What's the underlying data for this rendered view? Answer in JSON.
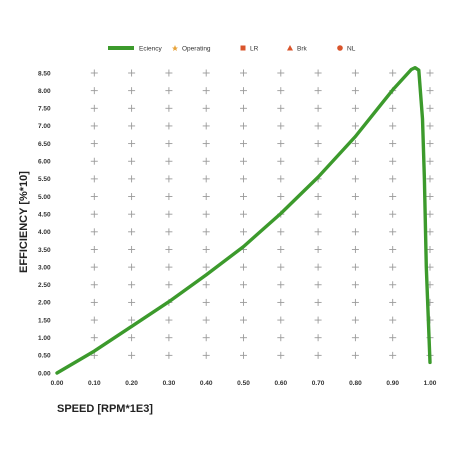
{
  "chart_data": {
    "type": "line",
    "title": "",
    "xlabel": "SPEED [RPM*1E3]",
    "ylabel": "EFFICIENCY [%*10]",
    "xlim": [
      0,
      1
    ],
    "ylim": [
      0,
      8.5
    ],
    "x_ticks": [
      0,
      0.1,
      0.2,
      0.3,
      0.4,
      0.5,
      0.6,
      0.7,
      0.8,
      0.9,
      1.0
    ],
    "x_tick_labels": [
      "0.00",
      "0.10",
      "0.20",
      "0.30",
      "0.40",
      "0.50",
      "0.60",
      "0.70",
      "0.80",
      "0.90",
      "1.00"
    ],
    "y_ticks": [
      0,
      0.5,
      1,
      1.5,
      2,
      2.5,
      3,
      3.5,
      4,
      4.5,
      5,
      5.5,
      6,
      6.5,
      7,
      7.5,
      8,
      8.5
    ],
    "y_tick_labels": [
      "0.00",
      "0.50",
      "1.00",
      "1.50",
      "2.00",
      "2.50",
      "3.00",
      "3.50",
      "4.00",
      "4.50",
      "5.00",
      "5.50",
      "6.00",
      "6.50",
      "7.00",
      "7.50",
      "8.00",
      "8.50"
    ],
    "grid": "crosshair-markers",
    "legend_position": "top",
    "legend": [
      {
        "name": "Eciency",
        "color": "#3c9a2c",
        "marker": "line"
      },
      {
        "name": "Operating",
        "color": "#e8a33a",
        "marker": "star"
      },
      {
        "name": "LR",
        "color": "#d9542b",
        "marker": "square"
      },
      {
        "name": "Brk",
        "color": "#d9542b",
        "marker": "triangle"
      },
      {
        "name": "NL",
        "color": "#d9542b",
        "marker": "circle"
      }
    ],
    "series": [
      {
        "name": "Eciency",
        "color": "#3c9a2c",
        "x": [
          0.0,
          0.1,
          0.2,
          0.3,
          0.4,
          0.5,
          0.6,
          0.7,
          0.8,
          0.9,
          0.95,
          0.96,
          0.97,
          0.98,
          0.985,
          0.99,
          1.0
        ],
        "y": [
          0.0,
          0.62,
          1.32,
          2.02,
          2.78,
          3.58,
          4.52,
          5.55,
          6.7,
          8.02,
          8.6,
          8.65,
          8.58,
          7.2,
          5.5,
          3.0,
          0.3
        ]
      }
    ]
  }
}
